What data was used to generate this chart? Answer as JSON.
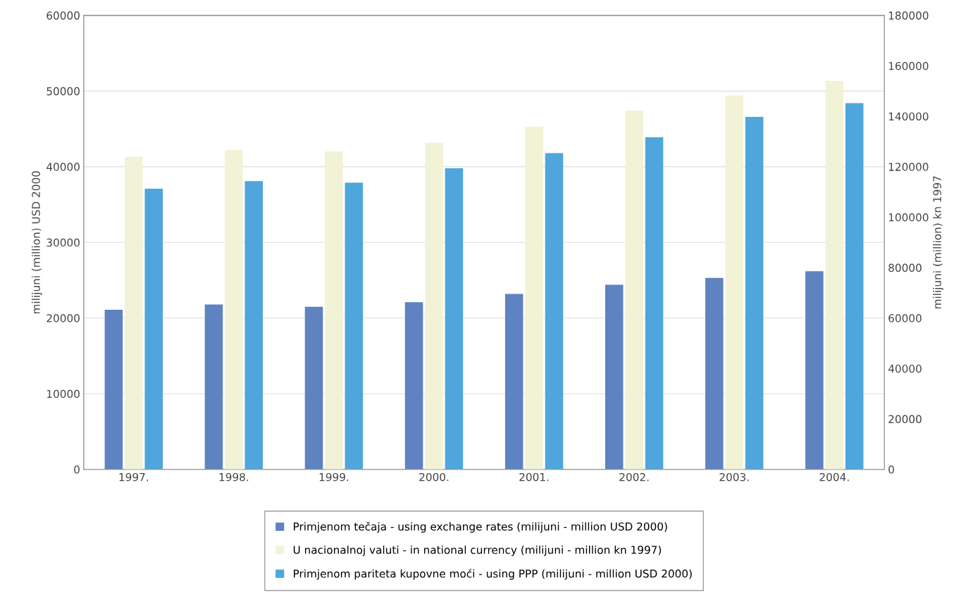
{
  "chart_data": {
    "type": "bar",
    "ylabel": "milijuni (million) USD 2000",
    "y2label": "milijuni (million) kn 1997",
    "categories": [
      "1997.",
      "1998.",
      "1999.",
      "2000.",
      "2001.",
      "2002.",
      "2003.",
      "2004."
    ],
    "series": [
      {
        "name": "Primjenom tečaja - using exchange rates (milijuni - million USD 2000)",
        "color": "#5f82c0",
        "values": [
          21100,
          21800,
          21500,
          22100,
          23200,
          24400,
          25300,
          26200
        ]
      },
      {
        "name": "U nacionalnoj valuti - in national currency (milijuni - million kn 1997)",
        "color": "#f2f2d6",
        "axis": "y2",
        "values": [
          123900,
          126700,
          126100,
          129500,
          135900,
          142300,
          148200,
          154000
        ]
      },
      {
        "name": "Primjenom pariteta kupovne moći - using PPP (milijuni - million USD 2000)",
        "color": "#4ea6dc",
        "values": [
          37100,
          38100,
          37900,
          39800,
          41800,
          43900,
          46600,
          48400
        ]
      }
    ],
    "ylim": [
      0,
      60000
    ],
    "yticks": [
      0,
      10000,
      20000,
      30000,
      40000,
      50000,
      60000
    ],
    "y2lim": [
      0,
      180000
    ],
    "y2ticks": [
      0,
      20000,
      40000,
      60000,
      80000,
      100000,
      120000,
      140000,
      160000,
      180000
    ],
    "grid": "y",
    "legend": "bottom"
  }
}
